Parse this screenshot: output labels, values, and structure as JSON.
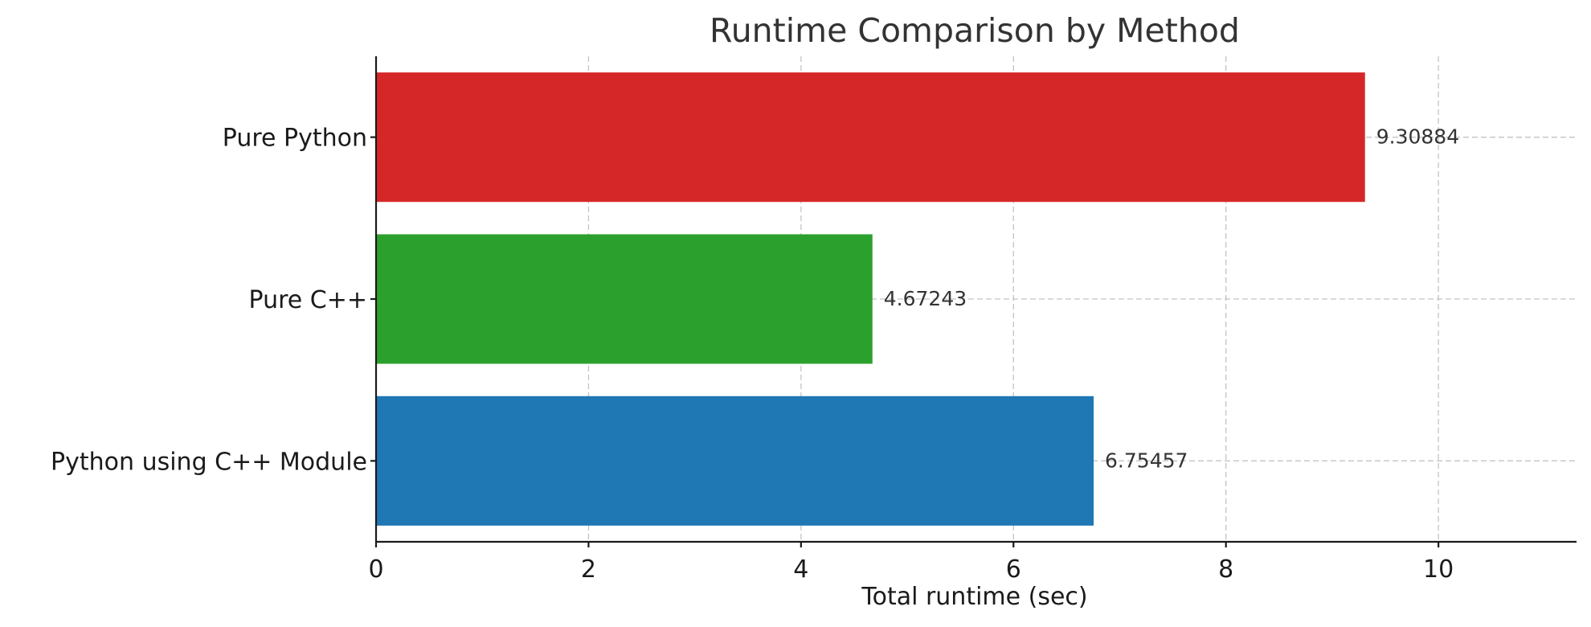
{
  "chart_data": {
    "type": "bar",
    "orientation": "horizontal",
    "title": "Runtime Comparison by Method",
    "xlabel": "Total runtime (sec)",
    "ylabel": "",
    "xlim": [
      0,
      11.3
    ],
    "xticks": [
      0,
      2,
      4,
      6,
      8,
      10
    ],
    "grid": true,
    "categories": [
      "Pure Python",
      "Pure C++",
      "Python using C++ Module"
    ],
    "values": [
      9.30884,
      4.67243,
      6.75457
    ],
    "value_labels": [
      "9.30884",
      "4.67243",
      "6.75457"
    ],
    "colors": [
      "#d62728",
      "#2ca02c",
      "#1f77b4"
    ]
  }
}
